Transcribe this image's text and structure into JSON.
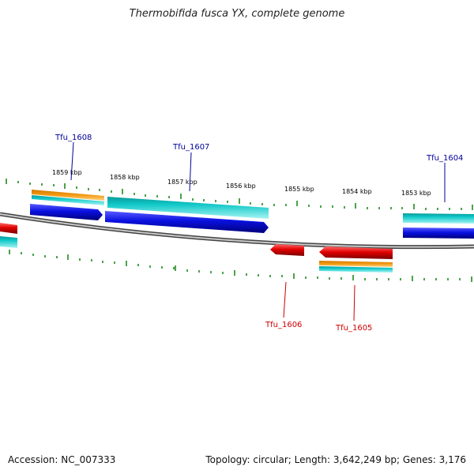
{
  "header": {
    "title": "Thermobifida fusca YX, complete genome"
  },
  "footer": {
    "accession": "Accession: NC_007333",
    "summary": "Topology: circular; Length: 3,642,249 bp; Genes: 3,176"
  },
  "colors": {
    "backbone": "#8a8a8a",
    "ticks": "#1f8a1f",
    "forward_gene": "#0a10e0",
    "reverse_gene": "#e00000",
    "cds_cyan": "#10c8c8",
    "cds_orange": "#f39a12",
    "label_forward": "#000099",
    "label_reverse": "#cc0000"
  },
  "scale": {
    "tick_labels": [
      "1859 kbp",
      "1858 kbp",
      "1857 kbp",
      "1856 kbp",
      "1855 kbp",
      "1854 kbp",
      "1853 kbp"
    ]
  },
  "genes": [
    {
      "id": "tfu1608",
      "label": "Tfu_1608",
      "strand": "forward"
    },
    {
      "id": "tfu1607",
      "label": "Tfu_1607",
      "strand": "forward"
    },
    {
      "id": "tfu1604",
      "label": "Tfu_1604",
      "strand": "forward"
    },
    {
      "id": "tfu1606",
      "label": "Tfu_1606",
      "strand": "reverse"
    },
    {
      "id": "tfu1605",
      "label": "Tfu_1605",
      "strand": "reverse"
    }
  ]
}
